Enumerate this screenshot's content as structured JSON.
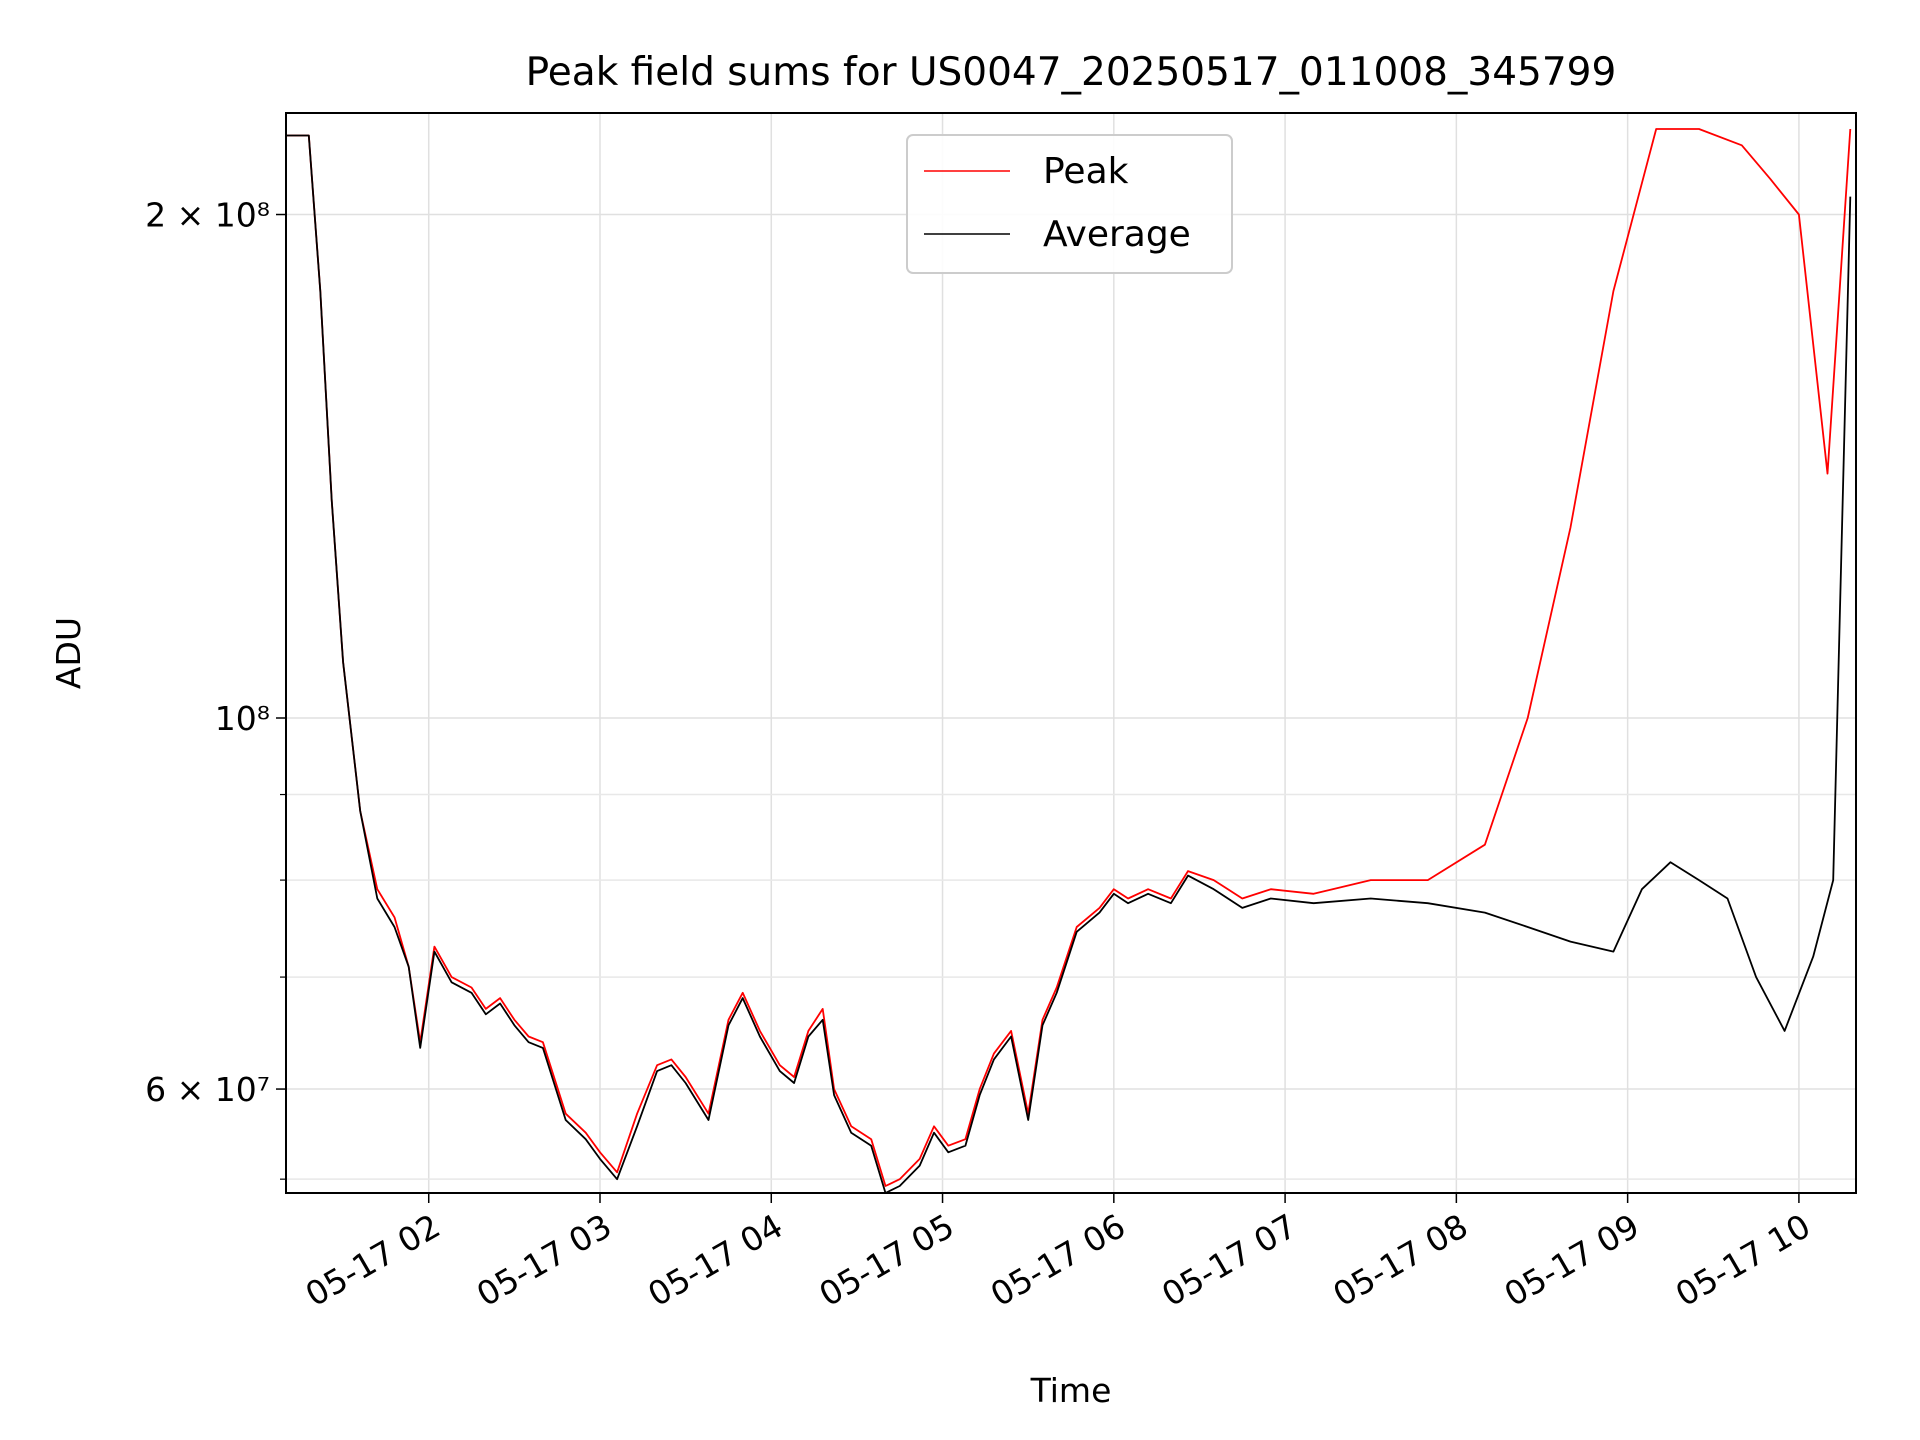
{
  "chart_data": {
    "type": "line",
    "title": "Peak field sums for US0047_20250517_011008_345799",
    "xlabel": "Time",
    "ylabel": "ADU",
    "yscale": "log",
    "ylim": [
      52000000,
      230000000
    ],
    "xlim": [
      "05-17 01:10",
      "05-17 10:20"
    ],
    "x_tick_labels": [
      "05-17 02",
      "05-17 03",
      "05-17 04",
      "05-17 05",
      "05-17 06",
      "05-17 07",
      "05-17 08",
      "05-17 09",
      "05-17 10"
    ],
    "x_ticks": [
      "05-17 02:00",
      "05-17 03:00",
      "05-17 04:00",
      "05-17 05:00",
      "05-17 06:00",
      "05-17 07:00",
      "05-17 08:00",
      "05-17 09:00",
      "05-17 10:00"
    ],
    "y_tick_labels": [
      {
        "value": 200000000,
        "label": "2 × 10⁸"
      },
      {
        "value": 100000000,
        "label": "10⁸"
      },
      {
        "value": 60000000,
        "label": "6 × 10⁷"
      }
    ],
    "y_minor_ticks": [
      53000000,
      70000000,
      80000000,
      90000000
    ],
    "grid": true,
    "legend": {
      "placement": "upper center",
      "entries": [
        "Peak",
        "Average"
      ]
    },
    "series": [
      {
        "name": "Peak",
        "color": "#ff0000",
        "x": [
          "05-17 01:10",
          "05-17 01:18",
          "05-17 01:22",
          "05-17 01:26",
          "05-17 01:30",
          "05-17 01:36",
          "05-17 01:42",
          "05-17 01:48",
          "05-17 01:53",
          "05-17 01:57",
          "05-17 02:02",
          "05-17 02:08",
          "05-17 02:15",
          "05-17 02:20",
          "05-17 02:25",
          "05-17 02:30",
          "05-17 02:35",
          "05-17 02:40",
          "05-17 02:48",
          "05-17 02:55",
          "05-17 03:00",
          "05-17 03:06",
          "05-17 03:13",
          "05-17 03:20",
          "05-17 03:25",
          "05-17 03:30",
          "05-17 03:38",
          "05-17 03:45",
          "05-17 03:50",
          "05-17 03:56",
          "05-17 04:03",
          "05-17 04:08",
          "05-17 04:13",
          "05-17 04:18",
          "05-17 04:22",
          "05-17 04:28",
          "05-17 04:35",
          "05-17 04:40",
          "05-17 04:45",
          "05-17 04:52",
          "05-17 04:57",
          "05-17 05:02",
          "05-17 05:08",
          "05-17 05:13",
          "05-17 05:18",
          "05-17 05:24",
          "05-17 05:30",
          "05-17 05:35",
          "05-17 05:40",
          "05-17 05:47",
          "05-17 05:55",
          "05-17 06:00",
          "05-17 06:05",
          "05-17 06:12",
          "05-17 06:20",
          "05-17 06:26",
          "05-17 06:35",
          "05-17 06:45",
          "05-17 06:55",
          "05-17 07:10",
          "05-17 07:30",
          "05-17 07:50",
          "05-17 08:10",
          "05-17 08:25",
          "05-17 08:40",
          "05-17 08:55",
          "05-17 09:10",
          "05-17 09:25",
          "05-17 09:40",
          "05-17 09:50",
          "05-17 10:00",
          "05-17 10:10",
          "05-17 10:18"
        ],
        "y": [
          223000000,
          223000000,
          180000000,
          135000000,
          108000000,
          88000000,
          79000000,
          76000000,
          71000000,
          64000000,
          73000000,
          70000000,
          69000000,
          67000000,
          68000000,
          66000000,
          64500000,
          64000000,
          58000000,
          56500000,
          55000000,
          53500000,
          58000000,
          62000000,
          62500000,
          61000000,
          58000000,
          66000000,
          68500000,
          65000000,
          62000000,
          61000000,
          65000000,
          67000000,
          60000000,
          57000000,
          56000000,
          52500000,
          53000000,
          54500000,
          57000000,
          55500000,
          56000000,
          60000000,
          63000000,
          65000000,
          58000000,
          66000000,
          69000000,
          75000000,
          77000000,
          79000000,
          78000000,
          79000000,
          78000000,
          81000000,
          80000000,
          78000000,
          79000000,
          78500000,
          80000000,
          80000000,
          84000000,
          100000000,
          130000000,
          180000000,
          225000000,
          225000000,
          220000000,
          210000000,
          200000000,
          140000000,
          225000000
        ]
      },
      {
        "name": "Average",
        "color": "#000000",
        "x": [
          "05-17 01:10",
          "05-17 01:18",
          "05-17 01:22",
          "05-17 01:26",
          "05-17 01:30",
          "05-17 01:36",
          "05-17 01:42",
          "05-17 01:48",
          "05-17 01:53",
          "05-17 01:57",
          "05-17 02:02",
          "05-17 02:08",
          "05-17 02:15",
          "05-17 02:20",
          "05-17 02:25",
          "05-17 02:30",
          "05-17 02:35",
          "05-17 02:40",
          "05-17 02:48",
          "05-17 02:55",
          "05-17 03:00",
          "05-17 03:06",
          "05-17 03:13",
          "05-17 03:20",
          "05-17 03:25",
          "05-17 03:30",
          "05-17 03:38",
          "05-17 03:45",
          "05-17 03:50",
          "05-17 03:56",
          "05-17 04:03",
          "05-17 04:08",
          "05-17 04:13",
          "05-17 04:18",
          "05-17 04:22",
          "05-17 04:28",
          "05-17 04:35",
          "05-17 04:40",
          "05-17 04:45",
          "05-17 04:52",
          "05-17 04:57",
          "05-17 05:02",
          "05-17 05:08",
          "05-17 05:13",
          "05-17 05:18",
          "05-17 05:24",
          "05-17 05:30",
          "05-17 05:35",
          "05-17 05:40",
          "05-17 05:47",
          "05-17 05:55",
          "05-17 06:00",
          "05-17 06:05",
          "05-17 06:12",
          "05-17 06:20",
          "05-17 06:26",
          "05-17 06:35",
          "05-17 06:45",
          "05-17 06:55",
          "05-17 07:10",
          "05-17 07:30",
          "05-17 07:50",
          "05-17 08:10",
          "05-17 08:25",
          "05-17 08:40",
          "05-17 08:55",
          "05-17 09:05",
          "05-17 09:15",
          "05-17 09:25",
          "05-17 09:35",
          "05-17 09:45",
          "05-17 09:55",
          "05-17 10:05",
          "05-17 10:12",
          "05-17 10:18"
        ],
        "y": [
          223000000,
          223000000,
          180000000,
          135000000,
          108000000,
          88000000,
          78000000,
          75000000,
          71000000,
          63500000,
          72500000,
          69500000,
          68500000,
          66500000,
          67500000,
          65500000,
          64000000,
          63500000,
          57500000,
          56000000,
          54500000,
          53000000,
          57000000,
          61500000,
          62000000,
          60500000,
          57500000,
          65500000,
          68000000,
          64500000,
          61500000,
          60500000,
          64500000,
          66000000,
          59500000,
          56500000,
          55500000,
          52000000,
          52500000,
          54000000,
          56500000,
          55000000,
          55500000,
          59500000,
          62500000,
          64500000,
          57500000,
          65500000,
          68500000,
          74500000,
          76500000,
          78500000,
          77500000,
          78500000,
          77500000,
          80500000,
          79000000,
          77000000,
          78000000,
          77500000,
          78000000,
          77500000,
          76500000,
          75000000,
          73500000,
          72500000,
          79000000,
          82000000,
          80000000,
          78000000,
          70000000,
          65000000,
          72000000,
          80000000,
          205000000
        ]
      }
    ]
  }
}
